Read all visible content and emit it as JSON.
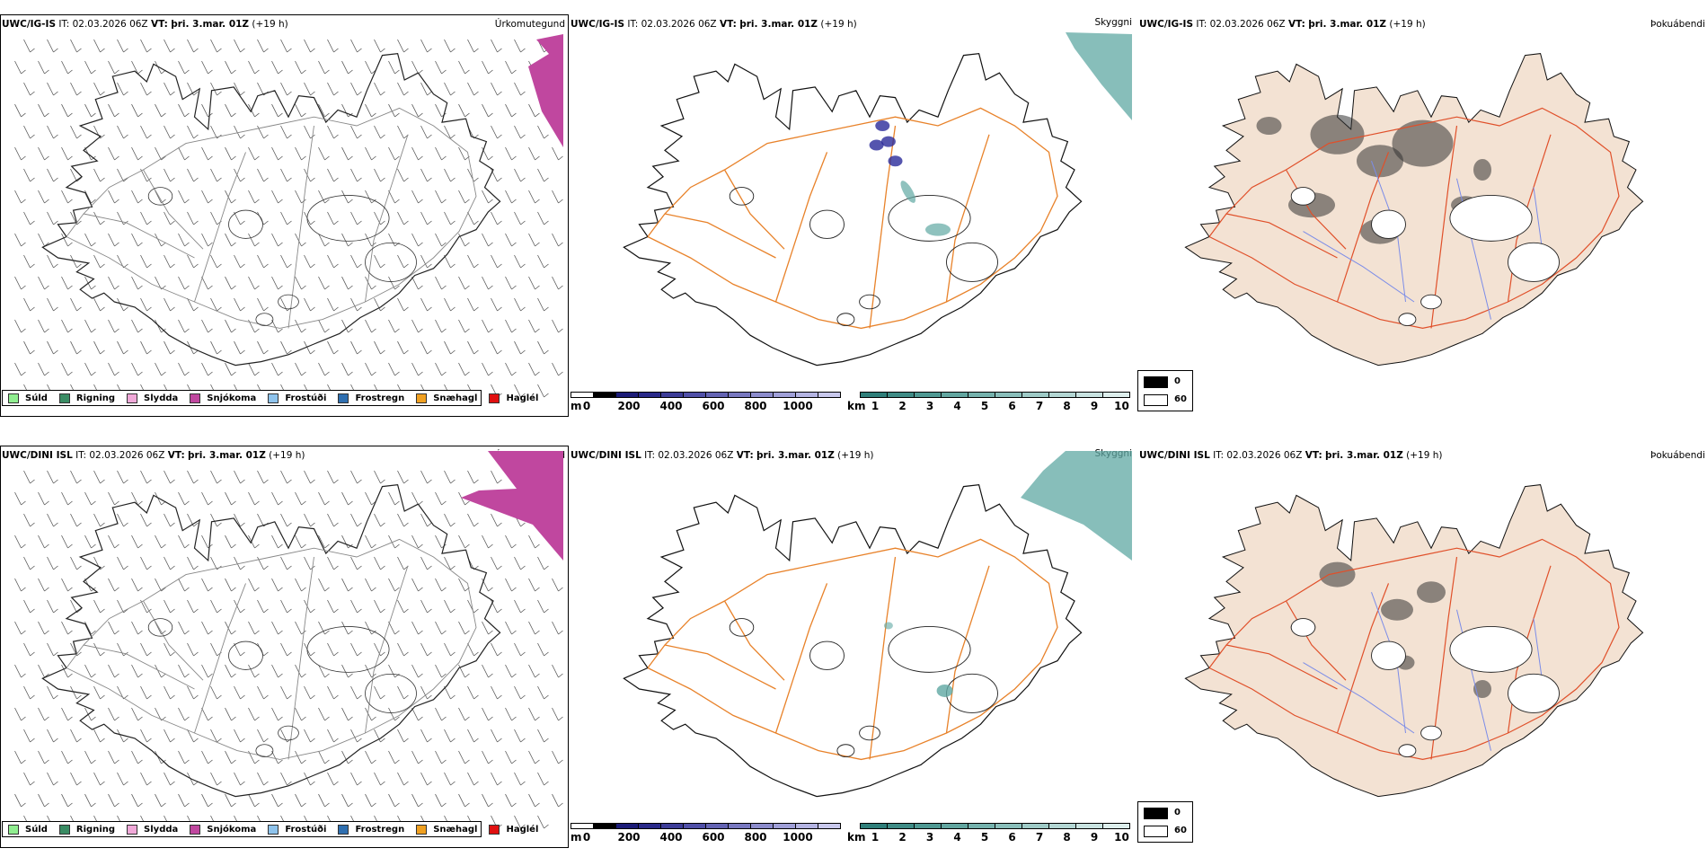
{
  "rows": [
    {
      "model": "UWC/IG-IS",
      "it_label": "IT:",
      "it_value": "02.03.2026 06Z",
      "vt_label": "VT:",
      "vt_value": "þri. 3.mar. 01Z",
      "lead": "(+19 h)"
    },
    {
      "model": "UWC/DINI ISL",
      "it_label": "IT:",
      "it_value": "02.03.2026 06Z",
      "vt_label": "VT:",
      "vt_value": "þri. 3.mar. 01Z",
      "lead": "(+19 h)"
    }
  ],
  "panel_names": {
    "precip_type": "Úrkomutegund",
    "visibility": "Skyggni",
    "cloud": "Þokuábendi"
  },
  "precip_legend": [
    {
      "label": "Súld",
      "color": "#90ee90"
    },
    {
      "label": "Rigning",
      "color": "#3a8c64"
    },
    {
      "label": "Slydda",
      "color": "#f0a8d8"
    },
    {
      "label": "Snjókoma",
      "color": "#c0479f"
    },
    {
      "label": "Frostúði",
      "color": "#8ec3ec"
    },
    {
      "label": "Frostregn",
      "color": "#2f6fb0"
    },
    {
      "label": "Snæhagl",
      "color": "#f0a020"
    },
    {
      "label": "Haglél",
      "color": "#e01010"
    }
  ],
  "elevation_bar": {
    "unit": "m",
    "ticks": [
      "0",
      "200",
      "400",
      "600",
      "800",
      "1000"
    ],
    "colors": [
      "#ffffff",
      "#000000",
      "#1c1c78",
      "#2a2a8a",
      "#3d3d98",
      "#5050a8",
      "#6464b4",
      "#7878c0",
      "#8c8ccc",
      "#a0a0d8",
      "#b4b4e2",
      "#c8c8ec"
    ]
  },
  "visibility_bar": {
    "unit": "km",
    "ticks": [
      "1",
      "2",
      "3",
      "4",
      "5",
      "6",
      "7",
      "8",
      "9",
      "10"
    ],
    "colors": [
      "#2f7f7a",
      "#3f8c86",
      "#4f9993",
      "#62a6a0",
      "#75b2ad",
      "#89beba",
      "#9ecac6",
      "#b3d6d3",
      "#c8e2e0",
      "#ddeeec"
    ]
  },
  "cloud_legend": [
    {
      "label": "0",
      "color": "#000000"
    },
    {
      "label": "60",
      "color": "#ffffff"
    }
  ],
  "colors": {
    "snow": "#c0479f",
    "fog_teal": "#5fa8a3",
    "roads": "#e8822a",
    "roads_red": "#e0502a",
    "rivers": "#7b8ce8",
    "land_beige": "#f3e2d3",
    "high_elev": "#2a2a9a"
  }
}
